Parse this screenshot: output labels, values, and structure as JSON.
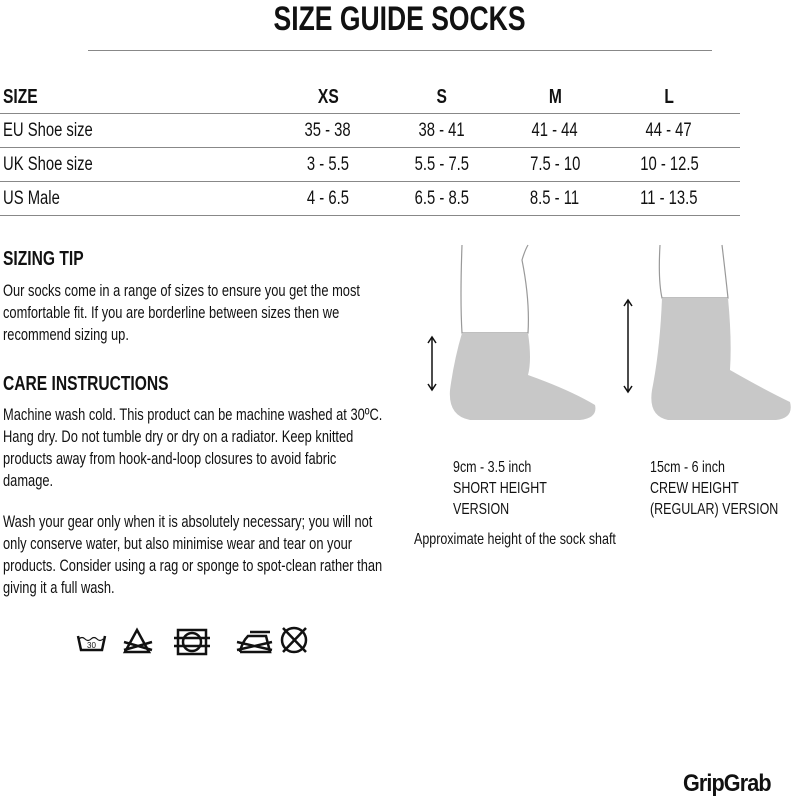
{
  "title": "SIZE GUIDE SOCKS",
  "table": {
    "headers": [
      "SIZE",
      "XS",
      "S",
      "M",
      "L"
    ],
    "rows": [
      {
        "label": "EU Shoe size",
        "values": [
          "35 - 38",
          "38 - 41",
          "41 - 44",
          "44 - 47"
        ]
      },
      {
        "label": "UK Shoe size",
        "values": [
          "3 - 5.5",
          "5.5 - 7.5",
          "7.5 - 10",
          "10 - 12.5"
        ]
      },
      {
        "label": "US Male",
        "values": [
          "4 - 6.5",
          "6.5 - 8.5",
          "8.5 - 11",
          "11 - 13.5"
        ]
      }
    ]
  },
  "sizing_tip": {
    "heading": "SIZING TIP",
    "text": [
      "Our socks come in a range of sizes to ensure you get the most",
      "comfortable fit. If you are borderline between sizes then we",
      "recommend sizing up."
    ]
  },
  "care": {
    "heading": "CARE INSTRUCTIONS",
    "p1": [
      "Machine wash cold. This product can be machine washed at 30ºC.",
      "Hang dry. Do not tumble dry or dry on a radiator. Keep knitted",
      "products away from hook-and-loop closures to avoid fabric",
      "damage."
    ],
    "p2": [
      "Wash your gear only when it is absolutely necessary; you will not",
      "only conserve water, but also minimise wear and tear on your",
      "products. Consider using a rag or sponge to spot-clean rather than",
      "giving it a full wash."
    ],
    "icons": [
      "wash-30-icon",
      "no-bleach-icon",
      "no-tumble-dry-icon",
      "no-iron-icon",
      "no-dry-clean-icon"
    ],
    "wash_temp": "30"
  },
  "socks": {
    "short": [
      "9cm - 3.5 inch",
      "SHORT HEIGHT",
      "VERSION"
    ],
    "crew": [
      "15cm - 6 inch",
      "CREW HEIGHT",
      "(REGULAR) VERSION"
    ],
    "note": "Approximate height of the sock shaft",
    "sock_color": "#c8c8c8"
  },
  "brand": "GripGrab"
}
